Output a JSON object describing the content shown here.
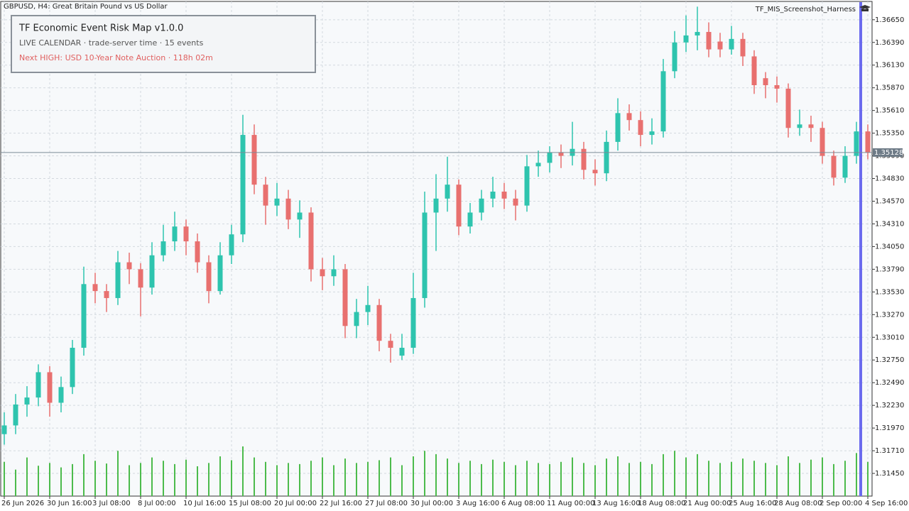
{
  "chart_data": {
    "type": "candlestick",
    "title": "GBPUSD, H4:  Great Britain Pound vs US Dollar",
    "script_name": "TF_MIS_Screenshot_Harness",
    "annotations": [
      "TF Economic Event Risk Map  v1.0.0",
      "LIVE CALENDAR · trade-server time · 15 events",
      "Next HIGH: USD 10-Year Note Auction · 118h 02m"
    ],
    "up_color": "#2ec4ae",
    "down_color": "#e8706f",
    "volume_color": "#4cbb4c",
    "ylim": [
      1.3119,
      1.3686
    ],
    "yticks": [
      {
        "value": 1.3665,
        "label": "1.36650"
      },
      {
        "value": 1.3639,
        "label": "1.36390"
      },
      {
        "value": 1.3613,
        "label": "1.36130"
      },
      {
        "value": 1.3587,
        "label": "1.35870"
      },
      {
        "value": 1.3561,
        "label": "1.35610"
      },
      {
        "value": 1.3535,
        "label": "1.35350"
      },
      {
        "value": 1.3509,
        "label": "1.35090"
      },
      {
        "value": 1.3483,
        "label": "1.34830"
      },
      {
        "value": 1.3457,
        "label": "1.34570"
      },
      {
        "value": 1.3431,
        "label": "1.34310"
      },
      {
        "value": 1.3405,
        "label": "1.34050"
      },
      {
        "value": 1.3379,
        "label": "1.33790"
      },
      {
        "value": 1.3353,
        "label": "1.33530"
      },
      {
        "value": 1.3327,
        "label": "1.33270"
      },
      {
        "value": 1.3301,
        "label": "1.33010"
      },
      {
        "value": 1.3275,
        "label": "1.32750"
      },
      {
        "value": 1.3249,
        "label": "1.32490"
      },
      {
        "value": 1.3223,
        "label": "1.32230"
      },
      {
        "value": 1.3197,
        "label": "1.31970"
      },
      {
        "value": 1.3171,
        "label": "1.31710"
      },
      {
        "value": 1.3145,
        "label": "1.31450"
      }
    ],
    "grid": true,
    "last_price": 1.35128,
    "xticks": [
      {
        "value": 0,
        "label": "26 Jun 2026"
      },
      {
        "value": 4,
        "label": "30 Jun 16:00"
      },
      {
        "value": 8,
        "label": "3 Jul 08:00"
      },
      {
        "value": 12,
        "label": "8 Jul 00:00"
      },
      {
        "value": 16,
        "label": "10 Jul 16:00"
      },
      {
        "value": 20,
        "label": "15 Jul 08:00"
      },
      {
        "value": 24,
        "label": "20 Jul 00:00"
      },
      {
        "value": 28,
        "label": "22 Jul 16:00"
      },
      {
        "value": 32,
        "label": "27 Jul 08:00"
      },
      {
        "value": 36,
        "label": "30 Jul 00:00"
      },
      {
        "value": 40,
        "label": "3 Aug 16:00"
      },
      {
        "value": 44,
        "label": "6 Aug 08:00"
      },
      {
        "value": 48,
        "label": "11 Aug 00:00"
      },
      {
        "value": 52,
        "label": "13 Aug 16:00"
      },
      {
        "value": 56,
        "label": "18 Aug 08:00"
      },
      {
        "value": 60,
        "label": "21 Aug 00:00"
      },
      {
        "value": 64,
        "label": "25 Aug 16:00"
      },
      {
        "value": 68,
        "label": "28 Aug 08:00"
      },
      {
        "value": 72,
        "label": "2 Sep 00:00"
      },
      {
        "value": 76,
        "label": "4 Sep 16:00"
      }
    ],
    "open": [
      1.319,
      1.32,
      1.3224,
      1.3232,
      1.3261,
      1.3226,
      1.3244,
      1.3289,
      1.3362,
      1.3354,
      1.3346,
      1.3387,
      1.3379,
      1.3358,
      1.3395,
      1.3411,
      1.3428,
      1.3411,
      1.3387,
      1.3354,
      1.3395,
      1.3419,
      1.3533,
      1.3476,
      1.3452,
      1.346,
      1.3436,
      1.3444,
      1.3379,
      1.3371,
      1.3379,
      1.3314,
      1.333,
      1.3338,
      1.3297,
      1.328,
      1.3289,
      1.3346,
      1.3444,
      1.346,
      1.3476,
      1.3428,
      1.3444,
      1.346,
      1.3468,
      1.346,
      1.3452,
      1.3497,
      1.3501,
      1.3513,
      1.3509,
      1.3517,
      1.3493,
      1.3489,
      1.3525,
      1.3558,
      1.355,
      1.3533,
      1.3537,
      1.3606,
      1.3639,
      1.3647,
      1.3651,
      1.364,
      1.3631,
      1.3643,
      1.3623,
      1.3598,
      1.359,
      1.3586,
      1.3541,
      1.3545,
      1.3541,
      1.3509,
      1.3484,
      1.3509,
      1.3537
    ],
    "high": [
      1.3215,
      1.3236,
      1.3245,
      1.327,
      1.3268,
      1.3256,
      1.3298,
      1.3382,
      1.3375,
      1.3362,
      1.34,
      1.3398,
      1.3386,
      1.341,
      1.343,
      1.3445,
      1.3436,
      1.342,
      1.3395,
      1.341,
      1.343,
      1.3556,
      1.3545,
      1.3485,
      1.3478,
      1.347,
      1.3458,
      1.345,
      1.3392,
      1.3395,
      1.3385,
      1.3345,
      1.336,
      1.3345,
      1.3305,
      1.3305,
      1.3375,
      1.3468,
      1.3488,
      1.3508,
      1.3482,
      1.3455,
      1.347,
      1.3485,
      1.3478,
      1.347,
      1.351,
      1.3515,
      1.352,
      1.3522,
      1.3548,
      1.3525,
      1.3505,
      1.3538,
      1.3575,
      1.3568,
      1.356,
      1.3552,
      1.362,
      1.3652,
      1.367,
      1.368,
      1.3662,
      1.365,
      1.3658,
      1.365,
      1.363,
      1.3605,
      1.36,
      1.3592,
      1.3562,
      1.3555,
      1.3548,
      1.3515,
      1.352,
      1.3548,
      1.3545
    ],
    "low": [
      1.3178,
      1.319,
      1.321,
      1.3222,
      1.321,
      1.3215,
      1.3236,
      1.328,
      1.334,
      1.333,
      1.3338,
      1.3362,
      1.3325,
      1.335,
      1.3388,
      1.34,
      1.3395,
      1.3375,
      1.334,
      1.335,
      1.3385,
      1.341,
      1.3465,
      1.343,
      1.344,
      1.3425,
      1.3415,
      1.3365,
      1.3355,
      1.336,
      1.33,
      1.33,
      1.3315,
      1.3285,
      1.3272,
      1.3275,
      1.3282,
      1.3335,
      1.34,
      1.3445,
      1.3418,
      1.342,
      1.3435,
      1.345,
      1.3448,
      1.3435,
      1.3445,
      1.3485,
      1.349,
      1.3495,
      1.3498,
      1.3482,
      1.3475,
      1.348,
      1.3515,
      1.3538,
      1.352,
      1.3522,
      1.353,
      1.3598,
      1.3628,
      1.363,
      1.3622,
      1.3622,
      1.3625,
      1.3612,
      1.358,
      1.3575,
      1.357,
      1.353,
      1.3532,
      1.3525,
      1.35,
      1.3475,
      1.3478,
      1.35,
      1.3505
    ],
    "close": [
      1.32,
      1.3224,
      1.3232,
      1.3261,
      1.3226,
      1.3244,
      1.3289,
      1.3362,
      1.3354,
      1.3346,
      1.3387,
      1.3379,
      1.3358,
      1.3395,
      1.3411,
      1.3428,
      1.3411,
      1.3387,
      1.3354,
      1.3395,
      1.3419,
      1.3533,
      1.3476,
      1.3452,
      1.346,
      1.3436,
      1.3444,
      1.3379,
      1.3371,
      1.3379,
      1.3314,
      1.333,
      1.3338,
      1.3297,
      1.3289,
      1.3289,
      1.3346,
      1.3444,
      1.346,
      1.3476,
      1.3428,
      1.3444,
      1.346,
      1.3468,
      1.346,
      1.3452,
      1.3497,
      1.3501,
      1.3513,
      1.3509,
      1.3517,
      1.3493,
      1.3489,
      1.3525,
      1.3558,
      1.355,
      1.3533,
      1.3537,
      1.3606,
      1.3639,
      1.3647,
      1.3651,
      1.3631,
      1.3631,
      1.3643,
      1.3623,
      1.359,
      1.359,
      1.3586,
      1.3541,
      1.3545,
      1.3541,
      1.3509,
      1.3484,
      1.3509,
      1.3537,
      1.3513
    ],
    "volume": [
      620,
      480,
      700,
      550,
      600,
      520,
      580,
      760,
      640,
      590,
      820,
      560,
      600,
      700,
      640,
      580,
      660,
      540,
      600,
      720,
      650,
      900,
      700,
      620,
      560,
      600,
      580,
      640,
      700,
      560,
      680,
      600,
      620,
      650,
      700,
      560,
      720,
      820,
      760,
      680,
      600,
      640,
      580,
      660,
      620,
      560,
      640,
      600,
      580,
      620,
      700,
      600,
      560,
      680,
      720,
      600,
      620,
      580,
      760,
      820,
      700,
      760,
      640,
      600,
      620,
      680,
      640,
      600,
      560,
      720,
      600,
      660,
      700,
      580,
      640,
      780,
      620
    ]
  }
}
